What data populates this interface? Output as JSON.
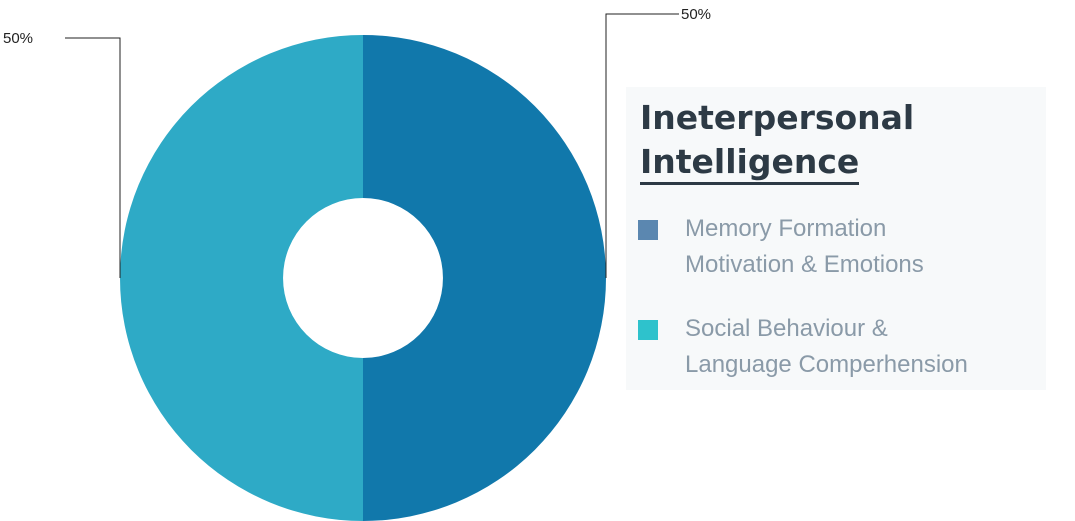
{
  "chart_data": {
    "type": "pie",
    "donut": true,
    "title": "",
    "slices": [
      {
        "value": 50,
        "label": "50%",
        "color": "#1178ab"
      },
      {
        "value": 50,
        "label": "50%",
        "color": "#2eaac6"
      }
    ]
  },
  "legend": {
    "title_lines": [
      "Ineterpersonal",
      "Intelligence"
    ],
    "items": [
      {
        "lines": [
          "Memory Formation",
          "Motivation & Emotions"
        ],
        "color": "#5b87b0"
      },
      {
        "lines": [
          "Social Behaviour &",
          "Language Comperhension"
        ],
        "color": "#2ec2cc"
      }
    ]
  }
}
